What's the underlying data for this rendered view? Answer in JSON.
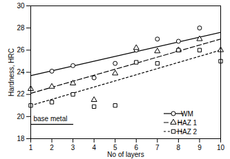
{
  "chart_data": {
    "type": "scatter",
    "x_label": "No of layers",
    "y_label": "Hardness, HRC",
    "x": [
      1,
      2,
      3,
      4,
      5,
      6,
      7,
      8,
      9,
      10
    ],
    "series": [
      {
        "name": "WM",
        "color": "#000000",
        "marker": "circle",
        "line_style": "solid",
        "values": [
          null,
          24.1,
          24.6,
          23.5,
          24.8,
          26.0,
          27.0,
          26.8,
          28.0,
          null
        ],
        "trend_line": {
          "x": [
            1,
            10
          ],
          "values": [
            23.7,
            27.6
          ]
        }
      },
      {
        "name": "HAZ 1",
        "color": "#000000",
        "marker": "triangle",
        "line_style": "long_dash",
        "values": [
          22.5,
          22.7,
          23.0,
          21.5,
          23.9,
          26.2,
          25.9,
          26.0,
          27.0,
          26.0
        ],
        "trend_line": {
          "x": [
            1,
            10
          ],
          "values": [
            22.1,
            27.0
          ]
        }
      },
      {
        "name": "HAZ 2",
        "color": "#000000",
        "marker": "square",
        "line_style": "dashed",
        "values": [
          21.0,
          21.3,
          22.0,
          20.9,
          21.0,
          24.9,
          24.8,
          26.0,
          26.0,
          25.0
        ],
        "trend_line": {
          "x": [
            1,
            10
          ],
          "values": [
            21.0,
            26.0
          ]
        }
      }
    ],
    "annotations": [
      {
        "text": "base metal",
        "x": [
          1,
          3
        ],
        "y": 19.3
      }
    ],
    "xlim": [
      1,
      10
    ],
    "xticks": [
      1,
      2,
      3,
      4,
      5,
      6,
      7,
      8,
      9,
      10
    ],
    "ylim": [
      18,
      30
    ],
    "yticks": [
      18,
      20,
      22,
      24,
      26,
      28,
      30
    ],
    "grid": false,
    "legend": "lower right"
  }
}
